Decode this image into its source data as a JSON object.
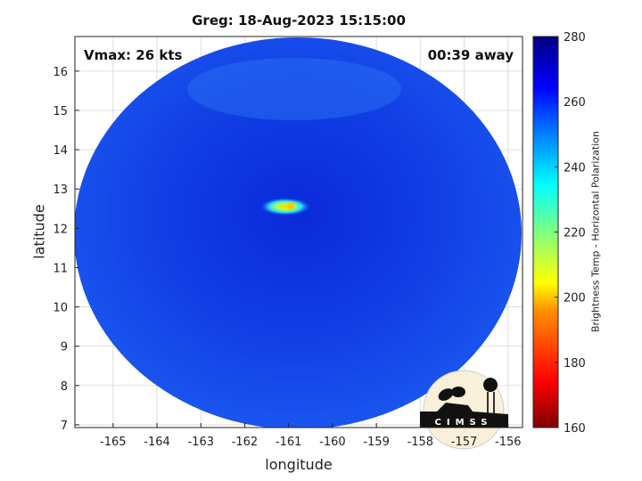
{
  "title": "Greg: 18-Aug-2023 15:15:00",
  "vmax_label": "Vmax: 26 kts",
  "time_label": "00:39 away",
  "logo_text": "CIMSS",
  "chart_data": {
    "type": "heatmap",
    "title": "Greg: 18-Aug-2023 15:15:00",
    "xlabel": "longitude",
    "ylabel": "latitude",
    "xlim": [
      -165.87,
      -155.67
    ],
    "ylim": [
      6.93,
      16.88
    ],
    "xticks": [
      -165,
      -164,
      -163,
      -162,
      -161,
      -160,
      -159,
      -158,
      -157,
      -156
    ],
    "yticks": [
      7,
      8,
      9,
      10,
      11,
      12,
      13,
      14,
      15,
      16
    ],
    "grid": true,
    "colorbar": {
      "label": "Brightness Temp - Horizontal Polarization",
      "range": [
        160,
        280
      ],
      "ticks": [
        160,
        180,
        200,
        220,
        240,
        260,
        280
      ],
      "colormap": "jet"
    },
    "swath_center": [
      -160.95,
      12.0
    ],
    "coldest_feature": {
      "lon": -160.9,
      "lat": 12.55,
      "approx_min_temp": 205
    }
  },
  "colors": {
    "background_swath": "#1a3fe0",
    "eye": "#e8e800"
  }
}
